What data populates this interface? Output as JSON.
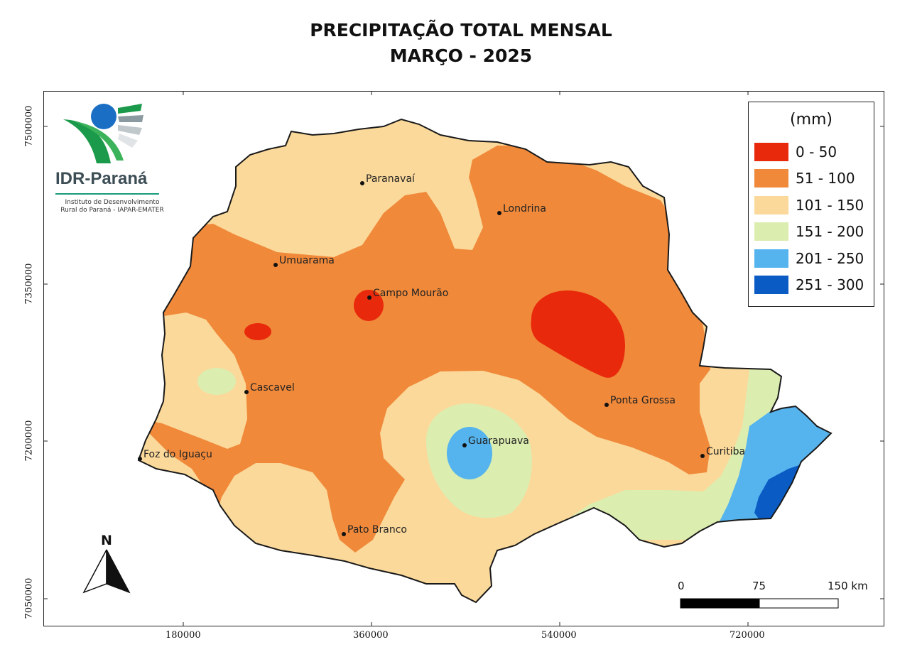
{
  "title_line1": "PRECIPITAÇÃO TOTAL MENSAL",
  "title_line2": "MARÇO - 2025",
  "y_ticks": [
    "7500000",
    "7350000",
    "7200000",
    "7050000"
  ],
  "x_ticks": [
    "180000",
    "360000",
    "540000",
    "720000"
  ],
  "legend": {
    "title": "(mm)",
    "items": [
      {
        "label": "0 - 50",
        "color": "#e8290b"
      },
      {
        "label": "51 - 100",
        "color": "#f0893a"
      },
      {
        "label": "101 - 150",
        "color": "#fbd99a"
      },
      {
        "label": "151 - 200",
        "color": "#dcedb0"
      },
      {
        "label": "201 - 250",
        "color": "#55b4ee"
      },
      {
        "label": "251 - 300",
        "color": "#0a5bc4"
      }
    ]
  },
  "cities": [
    {
      "name": "Paranavaí"
    },
    {
      "name": "Londrina"
    },
    {
      "name": "Umuarama"
    },
    {
      "name": "Campo Mourão"
    },
    {
      "name": "Cascavel"
    },
    {
      "name": "Ponta Grossa"
    },
    {
      "name": "Guarapuava"
    },
    {
      "name": "Curitiba"
    },
    {
      "name": "Foz do Iguaçu"
    },
    {
      "name": "Pato Branco"
    }
  ],
  "logo": {
    "name": "IDR-Paraná",
    "subtitle_line1": "Instituto de Desenvolvimento",
    "subtitle_line2": "Rural do Paraná - IAPAR-EMATER"
  },
  "north_label": "N",
  "scale": {
    "labels": [
      "0",
      "75",
      "150 km"
    ]
  }
}
